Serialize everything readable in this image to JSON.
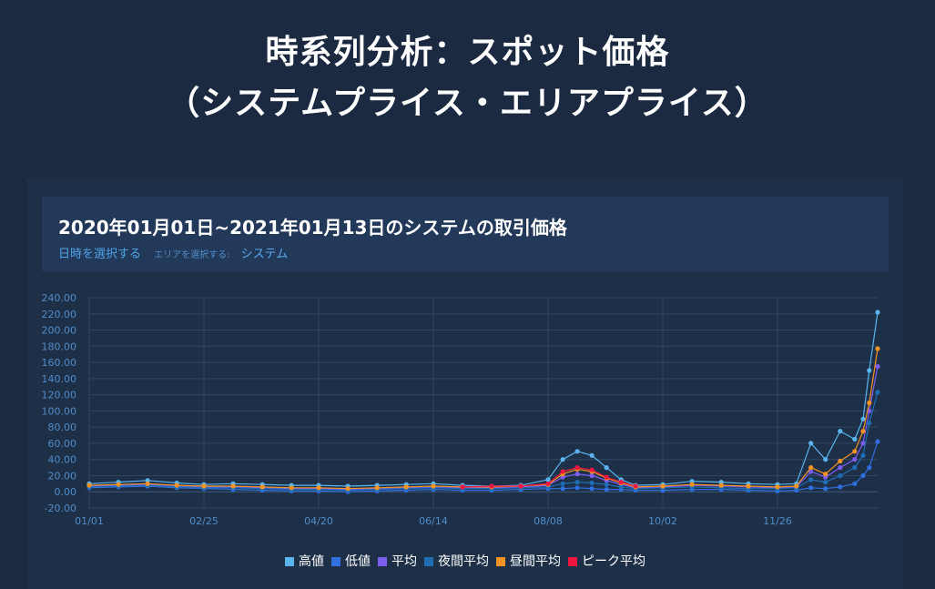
{
  "page": {
    "title_line1": "時系列分析：スポット価格",
    "title_line2": "（システムプライス・エリアプライス）"
  },
  "panel": {
    "title": "2020年01月01日~2021年01月13日のシステムの取引価格",
    "date_select_label": "日時を選択する",
    "area_select_label": "エリアを選択する:",
    "area_value": "システム"
  },
  "colors": {
    "background": "#1b2a40",
    "panel": "#1e3048",
    "grid": "#2f4663",
    "axis_text": "#4f8cc9"
  },
  "chart_data": {
    "type": "line",
    "title": "2020年01月01日~2021年01月13日のシステムの取引価格",
    "xlabel": "",
    "ylabel": "",
    "ylim": [
      -20,
      240
    ],
    "yticks": [
      "240.00",
      "220.00",
      "200.00",
      "180.00",
      "160.00",
      "140.00",
      "120.00",
      "100.00",
      "80.00",
      "60.00",
      "40.00",
      "20.00",
      "0.00",
      "-20.00"
    ],
    "xticks": [
      "01/01",
      "02/25",
      "04/20",
      "06/14",
      "08/08",
      "10/02",
      "11/26"
    ],
    "grid": true,
    "legend_position": "bottom",
    "x": [
      "01/01",
      "01/15",
      "01/29",
      "02/12",
      "02/25",
      "03/10",
      "03/24",
      "04/07",
      "04/20",
      "05/04",
      "05/18",
      "06/01",
      "06/14",
      "06/28",
      "07/12",
      "07/26",
      "08/08",
      "08/15",
      "08/22",
      "08/29",
      "09/05",
      "09/12",
      "09/19",
      "10/02",
      "10/16",
      "10/30",
      "11/12",
      "11/26",
      "12/05",
      "12/12",
      "12/19",
      "12/26",
      "01/02",
      "01/06",
      "01/09",
      "01/13"
    ],
    "series": [
      {
        "name": "高値",
        "color": "#5ab4ee",
        "values": [
          10,
          12,
          14,
          11,
          9,
          10,
          9,
          8,
          8,
          7,
          8,
          9,
          10,
          8,
          7,
          8,
          15,
          40,
          50,
          45,
          30,
          15,
          8,
          9,
          13,
          12,
          10,
          9,
          10,
          60,
          40,
          75,
          65,
          90,
          150,
          222
        ]
      },
      {
        "name": "低値",
        "color": "#2f6fe0",
        "values": [
          5,
          6,
          7,
          5,
          4,
          3,
          2,
          1,
          1,
          0,
          1,
          2,
          3,
          2,
          2,
          3,
          4,
          4,
          5,
          4,
          3,
          3,
          2,
          2,
          3,
          3,
          2,
          1,
          2,
          5,
          4,
          6,
          10,
          20,
          30,
          62
        ]
      },
      {
        "name": "平均",
        "color": "#7d5cf0",
        "values": [
          7,
          8,
          9,
          7,
          6,
          6,
          5,
          4,
          4,
          3,
          4,
          5,
          6,
          5,
          5,
          6,
          8,
          18,
          22,
          20,
          14,
          9,
          5,
          6,
          8,
          7,
          6,
          5,
          6,
          25,
          18,
          30,
          40,
          60,
          100,
          155
        ]
      },
      {
        "name": "夜間平均",
        "color": "#1f6eb5",
        "values": [
          6,
          7,
          8,
          6,
          5,
          5,
          4,
          3,
          3,
          2,
          3,
          4,
          5,
          4,
          4,
          5,
          6,
          10,
          12,
          11,
          9,
          6,
          4,
          5,
          6,
          5,
          4,
          4,
          5,
          15,
          12,
          20,
          30,
          45,
          85,
          123
        ]
      },
      {
        "name": "昼間平均",
        "color": "#f39323",
        "values": [
          8,
          9,
          10,
          8,
          7,
          7,
          6,
          5,
          5,
          4,
          5,
          6,
          7,
          6,
          6,
          7,
          9,
          22,
          28,
          25,
          17,
          11,
          6,
          7,
          9,
          8,
          7,
          6,
          7,
          30,
          22,
          38,
          50,
          75,
          110,
          177
        ]
      },
      {
        "name": "ピーク平均",
        "color": "#f0163f",
        "values": [
          null,
          null,
          null,
          null,
          null,
          null,
          null,
          null,
          null,
          null,
          null,
          null,
          null,
          6,
          7,
          7,
          10,
          25,
          30,
          27,
          18,
          12,
          7,
          null,
          null,
          null,
          null,
          null,
          null,
          null,
          null,
          null,
          null,
          null,
          null,
          null
        ]
      }
    ]
  }
}
